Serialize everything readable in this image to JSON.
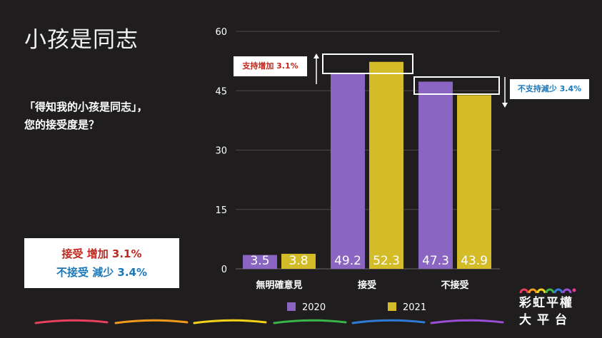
{
  "title": "小孩是同志",
  "question": {
    "line1": "「得知我的小孩是同志」，",
    "line2": "您的接受度是？"
  },
  "summary": {
    "line1": "接受 增加 3.1%",
    "line2": "不接受 減少 3.4%"
  },
  "callouts": {
    "up": "支持增加 3.1%",
    "down": "不支持減少 3.4%"
  },
  "logo": {
    "line1": "彩虹平權",
    "line2": "大平台"
  },
  "colors": {
    "s2020": "#8a65c1",
    "s2021": "#d3bc27",
    "up": "#c0281e",
    "down": "#1c78b9"
  },
  "chart_data": {
    "type": "bar",
    "categories": [
      "無明確意見",
      "接受",
      "不接受"
    ],
    "series": [
      {
        "name": "2020",
        "values": [
          3.5,
          49.2,
          47.3
        ]
      },
      {
        "name": "2021",
        "values": [
          3.8,
          52.3,
          43.9
        ]
      }
    ],
    "data_labels": [
      [
        "3.5",
        "49.2",
        "47.3"
      ],
      [
        "3.8",
        "52.3",
        "43.9"
      ]
    ],
    "yticks": [
      0,
      15,
      30,
      45,
      60
    ],
    "ylim": [
      0,
      60
    ],
    "grid": true,
    "legend": "bottom"
  }
}
